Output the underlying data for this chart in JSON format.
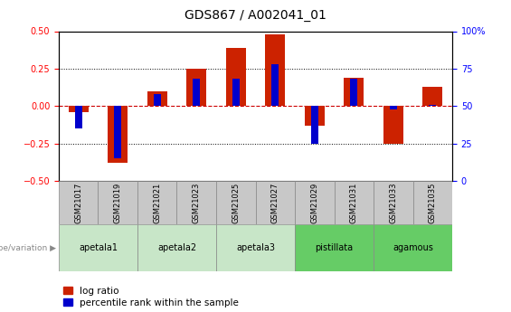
{
  "title": "GDS867 / A002041_01",
  "samples": [
    "GSM21017",
    "GSM21019",
    "GSM21021",
    "GSM21023",
    "GSM21025",
    "GSM21027",
    "GSM21029",
    "GSM21031",
    "GSM21033",
    "GSM21035"
  ],
  "log_ratio": [
    -0.04,
    -0.38,
    0.1,
    0.25,
    0.39,
    0.48,
    -0.13,
    0.19,
    -0.25,
    0.13
  ],
  "percentile_rank": [
    35,
    15,
    58,
    68,
    68,
    78,
    25,
    68,
    48,
    51
  ],
  "ylim_left": [
    -0.5,
    0.5
  ],
  "ylim_right": [
    0,
    100
  ],
  "yticks_left": [
    -0.5,
    -0.25,
    0.0,
    0.25,
    0.5
  ],
  "yticks_right": [
    0,
    25,
    50,
    75,
    100
  ],
  "hlines_dotted": [
    0.25,
    -0.25
  ],
  "groups": [
    {
      "label": "apetala1",
      "start": 0,
      "end": 2,
      "color": "#c8e6c8"
    },
    {
      "label": "apetala2",
      "start": 2,
      "end": 4,
      "color": "#c8e6c8"
    },
    {
      "label": "apetala3",
      "start": 4,
      "end": 6,
      "color": "#c8e6c8"
    },
    {
      "label": "pistillata",
      "start": 6,
      "end": 8,
      "color": "#66cc66"
    },
    {
      "label": "agamous",
      "start": 8,
      "end": 10,
      "color": "#66cc66"
    }
  ],
  "bar_color_red": "#cc2200",
  "bar_color_blue": "#0000cc",
  "bar_width": 0.5,
  "percentile_bar_width": 0.18,
  "zero_line_color": "#cc0000",
  "sample_cell_color": "#c8c8c8",
  "background_color": "#ffffff",
  "legend_red_label": "log ratio",
  "legend_blue_label": "percentile rank within the sample",
  "group_label_text": "genotype/variation",
  "title_fontsize": 10,
  "tick_fontsize": 7,
  "legend_fontsize": 7.5
}
